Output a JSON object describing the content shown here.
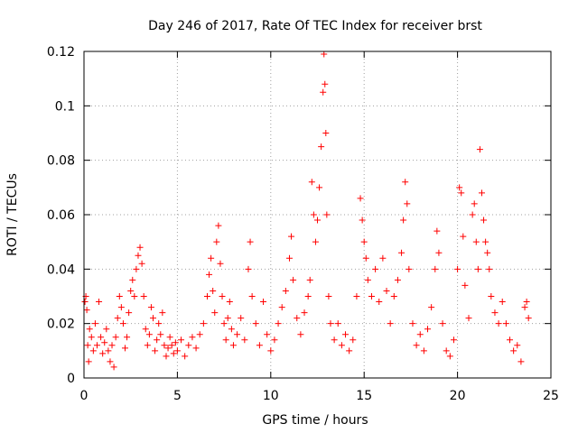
{
  "chart_data": {
    "type": "scatter",
    "title": "Day 246 of 2017, Rate Of TEC Index for receiver brst",
    "xlabel": "GPS time / hours",
    "ylabel": "ROTI / TECUs",
    "xlim": [
      0,
      25
    ],
    "ylim": [
      0,
      0.12
    ],
    "xticks": [
      0,
      5,
      10,
      15,
      20,
      25
    ],
    "yticks": [
      0,
      0.02,
      0.04,
      0.06,
      0.08,
      0.1,
      0.12
    ],
    "xtick_labels": [
      "0",
      "5",
      "10",
      "15",
      "20",
      "25"
    ],
    "ytick_labels": [
      "0",
      "0.02",
      "0.04",
      "0.06",
      "0.08",
      "0.1",
      "0.12"
    ],
    "grid": true,
    "marker": "+",
    "color": "#ff0000",
    "series": [
      {
        "name": "ROTI",
        "points": [
          [
            0.05,
            0.028
          ],
          [
            0.1,
            0.03
          ],
          [
            0.15,
            0.025
          ],
          [
            0.2,
            0.012
          ],
          [
            0.25,
            0.006
          ],
          [
            0.3,
            0.018
          ],
          [
            0.4,
            0.015
          ],
          [
            0.5,
            0.01
          ],
          [
            0.6,
            0.02
          ],
          [
            0.7,
            0.012
          ],
          [
            0.8,
            0.028
          ],
          [
            0.9,
            0.015
          ],
          [
            1.0,
            0.009
          ],
          [
            1.1,
            0.013
          ],
          [
            1.2,
            0.018
          ],
          [
            1.3,
            0.01
          ],
          [
            1.4,
            0.006
          ],
          [
            1.5,
            0.012
          ],
          [
            1.6,
            0.004
          ],
          [
            1.7,
            0.015
          ],
          [
            1.8,
            0.022
          ],
          [
            1.9,
            0.03
          ],
          [
            2.0,
            0.026
          ],
          [
            2.1,
            0.02
          ],
          [
            2.2,
            0.011
          ],
          [
            2.3,
            0.015
          ],
          [
            2.4,
            0.024
          ],
          [
            2.5,
            0.032
          ],
          [
            2.6,
            0.036
          ],
          [
            2.7,
            0.03
          ],
          [
            2.8,
            0.04
          ],
          [
            2.9,
            0.045
          ],
          [
            3.0,
            0.048
          ],
          [
            3.1,
            0.042
          ],
          [
            3.2,
            0.03
          ],
          [
            3.3,
            0.018
          ],
          [
            3.4,
            0.012
          ],
          [
            3.5,
            0.016
          ],
          [
            3.6,
            0.026
          ],
          [
            3.7,
            0.022
          ],
          [
            3.8,
            0.01
          ],
          [
            3.9,
            0.014
          ],
          [
            4.0,
            0.02
          ],
          [
            4.1,
            0.016
          ],
          [
            4.2,
            0.024
          ],
          [
            4.3,
            0.012
          ],
          [
            4.4,
            0.008
          ],
          [
            4.5,
            0.011
          ],
          [
            4.6,
            0.015
          ],
          [
            4.7,
            0.012
          ],
          [
            4.8,
            0.009
          ],
          [
            4.9,
            0.013
          ],
          [
            5.0,
            0.01
          ],
          [
            5.2,
            0.014
          ],
          [
            5.4,
            0.008
          ],
          [
            5.6,
            0.012
          ],
          [
            5.8,
            0.015
          ],
          [
            6.0,
            0.011
          ],
          [
            6.2,
            0.016
          ],
          [
            6.4,
            0.02
          ],
          [
            6.6,
            0.03
          ],
          [
            6.7,
            0.038
          ],
          [
            6.8,
            0.044
          ],
          [
            6.9,
            0.032
          ],
          [
            7.0,
            0.024
          ],
          [
            7.1,
            0.05
          ],
          [
            7.2,
            0.056
          ],
          [
            7.3,
            0.042
          ],
          [
            7.4,
            0.03
          ],
          [
            7.5,
            0.02
          ],
          [
            7.6,
            0.014
          ],
          [
            7.7,
            0.022
          ],
          [
            7.8,
            0.028
          ],
          [
            7.9,
            0.018
          ],
          [
            8.0,
            0.012
          ],
          [
            8.2,
            0.016
          ],
          [
            8.4,
            0.022
          ],
          [
            8.6,
            0.014
          ],
          [
            8.8,
            0.04
          ],
          [
            8.9,
            0.05
          ],
          [
            9.0,
            0.03
          ],
          [
            9.2,
            0.02
          ],
          [
            9.4,
            0.012
          ],
          [
            9.6,
            0.028
          ],
          [
            9.8,
            0.016
          ],
          [
            10.0,
            0.01
          ],
          [
            10.2,
            0.014
          ],
          [
            10.4,
            0.02
          ],
          [
            10.6,
            0.026
          ],
          [
            10.8,
            0.032
          ],
          [
            11.0,
            0.044
          ],
          [
            11.1,
            0.052
          ],
          [
            11.2,
            0.036
          ],
          [
            11.4,
            0.022
          ],
          [
            11.6,
            0.016
          ],
          [
            11.8,
            0.024
          ],
          [
            12.0,
            0.03
          ],
          [
            12.1,
            0.036
          ],
          [
            12.2,
            0.072
          ],
          [
            12.3,
            0.06
          ],
          [
            12.4,
            0.05
          ],
          [
            12.5,
            0.058
          ],
          [
            12.6,
            0.07
          ],
          [
            12.7,
            0.085
          ],
          [
            12.8,
            0.105
          ],
          [
            12.85,
            0.119
          ],
          [
            12.9,
            0.108
          ],
          [
            12.95,
            0.09
          ],
          [
            13.0,
            0.06
          ],
          [
            13.1,
            0.03
          ],
          [
            13.2,
            0.02
          ],
          [
            13.4,
            0.014
          ],
          [
            13.6,
            0.02
          ],
          [
            13.8,
            0.012
          ],
          [
            14.0,
            0.016
          ],
          [
            14.2,
            0.01
          ],
          [
            14.4,
            0.014
          ],
          [
            14.6,
            0.03
          ],
          [
            14.8,
            0.066
          ],
          [
            14.9,
            0.058
          ],
          [
            15.0,
            0.05
          ],
          [
            15.1,
            0.044
          ],
          [
            15.2,
            0.036
          ],
          [
            15.4,
            0.03
          ],
          [
            15.6,
            0.04
          ],
          [
            15.8,
            0.028
          ],
          [
            16.0,
            0.044
          ],
          [
            16.2,
            0.032
          ],
          [
            16.4,
            0.02
          ],
          [
            16.6,
            0.03
          ],
          [
            16.8,
            0.036
          ],
          [
            17.0,
            0.046
          ],
          [
            17.1,
            0.058
          ],
          [
            17.2,
            0.072
          ],
          [
            17.3,
            0.064
          ],
          [
            17.4,
            0.04
          ],
          [
            17.6,
            0.02
          ],
          [
            17.8,
            0.012
          ],
          [
            18.0,
            0.016
          ],
          [
            18.2,
            0.01
          ],
          [
            18.4,
            0.018
          ],
          [
            18.6,
            0.026
          ],
          [
            18.8,
            0.04
          ],
          [
            18.9,
            0.054
          ],
          [
            19.0,
            0.046
          ],
          [
            19.2,
            0.02
          ],
          [
            19.4,
            0.01
          ],
          [
            19.6,
            0.008
          ],
          [
            19.8,
            0.014
          ],
          [
            20.0,
            0.04
          ],
          [
            20.1,
            0.07
          ],
          [
            20.2,
            0.068
          ],
          [
            20.3,
            0.052
          ],
          [
            20.4,
            0.034
          ],
          [
            20.6,
            0.022
          ],
          [
            20.8,
            0.06
          ],
          [
            20.9,
            0.064
          ],
          [
            21.0,
            0.05
          ],
          [
            21.1,
            0.04
          ],
          [
            21.2,
            0.084
          ],
          [
            21.3,
            0.068
          ],
          [
            21.4,
            0.058
          ],
          [
            21.5,
            0.05
          ],
          [
            21.6,
            0.046
          ],
          [
            21.7,
            0.04
          ],
          [
            21.8,
            0.03
          ],
          [
            22.0,
            0.024
          ],
          [
            22.2,
            0.02
          ],
          [
            22.4,
            0.028
          ],
          [
            22.6,
            0.02
          ],
          [
            22.8,
            0.014
          ],
          [
            23.0,
            0.01
          ],
          [
            23.2,
            0.012
          ],
          [
            23.4,
            0.006
          ],
          [
            23.6,
            0.026
          ],
          [
            23.7,
            0.028
          ],
          [
            23.8,
            0.022
          ]
        ]
      }
    ]
  }
}
